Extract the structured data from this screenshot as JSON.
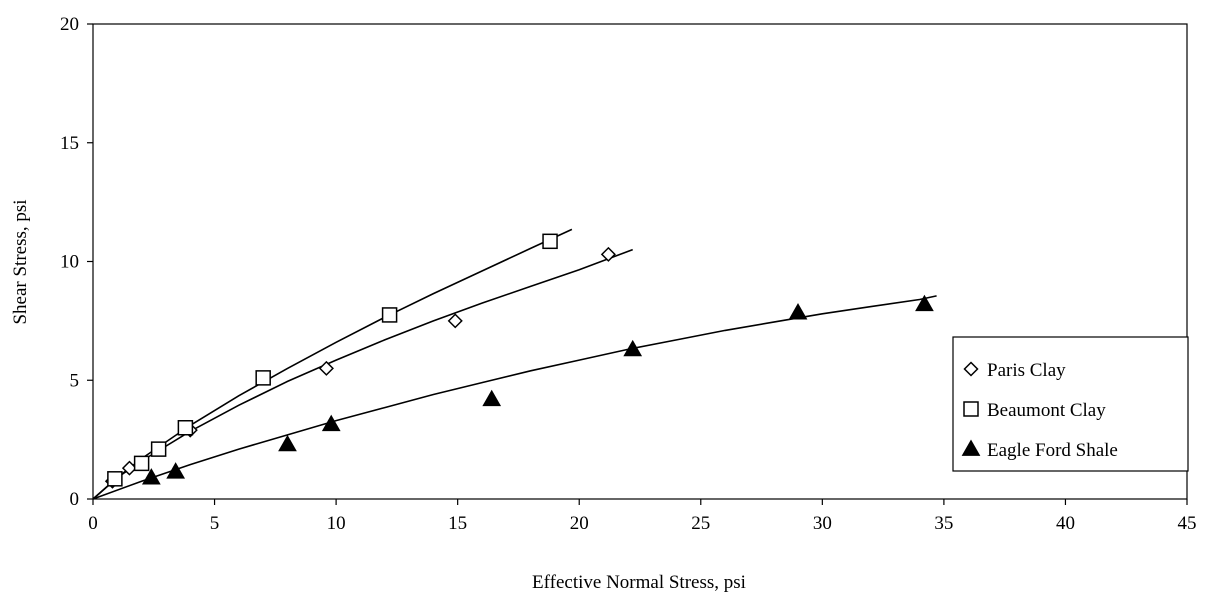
{
  "chart_data": {
    "type": "scatter",
    "title": "",
    "xlabel": "Effective Normal Stress, psi",
    "ylabel": "Shear Stress, psi",
    "xlim": [
      0,
      45
    ],
    "ylim": [
      0,
      20
    ],
    "xticks": [
      0,
      5,
      10,
      15,
      20,
      25,
      30,
      35,
      40,
      45
    ],
    "yticks": [
      0,
      5,
      10,
      15,
      20
    ],
    "grid": false,
    "legend_position": "right",
    "series": [
      {
        "name": "Paris Clay",
        "marker": "diamond-open",
        "points": [
          [
            0.8,
            0.75
          ],
          [
            1.5,
            1.3
          ],
          [
            4.0,
            2.9
          ],
          [
            9.6,
            5.5
          ],
          [
            14.9,
            7.5
          ],
          [
            21.2,
            10.3
          ]
        ],
        "fit": [
          [
            0,
            0
          ],
          [
            1,
            0.9
          ],
          [
            2,
            1.6
          ],
          [
            4,
            2.85
          ],
          [
            6,
            3.95
          ],
          [
            8,
            4.95
          ],
          [
            10,
            5.85
          ],
          [
            12,
            6.7
          ],
          [
            14,
            7.5
          ],
          [
            16,
            8.25
          ],
          [
            18,
            8.95
          ],
          [
            20,
            9.65
          ],
          [
            22.2,
            10.5
          ]
        ]
      },
      {
        "name": "Beaumont Clay",
        "marker": "square-open",
        "points": [
          [
            0.9,
            0.85
          ],
          [
            2.0,
            1.5
          ],
          [
            2.7,
            2.1
          ],
          [
            3.8,
            3.0
          ],
          [
            7.0,
            5.1
          ],
          [
            12.2,
            7.75
          ],
          [
            18.8,
            10.85
          ]
        ],
        "fit": [
          [
            0,
            0
          ],
          [
            1,
            0.9
          ],
          [
            2,
            1.7
          ],
          [
            4,
            3.1
          ],
          [
            6,
            4.35
          ],
          [
            8,
            5.5
          ],
          [
            10,
            6.6
          ],
          [
            12,
            7.65
          ],
          [
            14,
            8.65
          ],
          [
            16,
            9.6
          ],
          [
            18,
            10.55
          ],
          [
            19.7,
            11.35
          ]
        ]
      },
      {
        "name": "Eagle Ford Shale",
        "marker": "triangle-filled",
        "points": [
          [
            2.4,
            0.9
          ],
          [
            3.4,
            1.15
          ],
          [
            8.0,
            2.3
          ],
          [
            9.8,
            3.15
          ],
          [
            16.4,
            4.2
          ],
          [
            22.2,
            6.3
          ],
          [
            29.0,
            7.85
          ],
          [
            34.2,
            8.2
          ]
        ],
        "fit": [
          [
            0,
            0
          ],
          [
            2,
            0.75
          ],
          [
            4,
            1.45
          ],
          [
            6,
            2.1
          ],
          [
            8,
            2.7
          ],
          [
            10,
            3.3
          ],
          [
            12,
            3.85
          ],
          [
            14,
            4.4
          ],
          [
            16,
            4.9
          ],
          [
            18,
            5.4
          ],
          [
            20,
            5.85
          ],
          [
            22,
            6.3
          ],
          [
            24,
            6.7
          ],
          [
            26,
            7.1
          ],
          [
            28,
            7.45
          ],
          [
            30,
            7.8
          ],
          [
            32,
            8.1
          ],
          [
            34,
            8.4
          ],
          [
            34.7,
            8.55
          ]
        ]
      }
    ]
  }
}
